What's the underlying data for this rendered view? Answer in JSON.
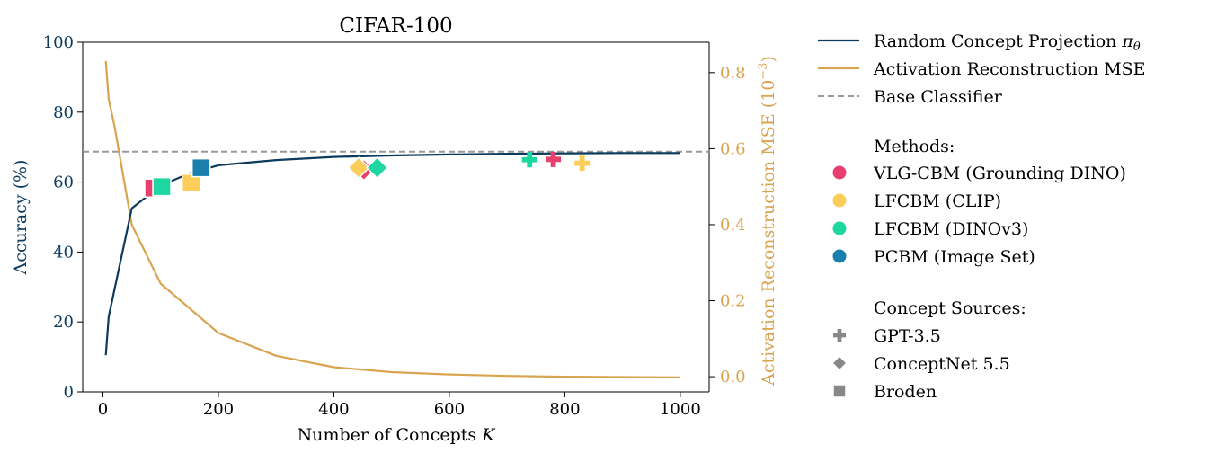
{
  "chart_data": {
    "type": "line",
    "title": "CIFAR-100",
    "xlabel": "Number of Concepts K",
    "ylabel_left": "Accuracy (%)",
    "ylabel_right": "Activation Reconstruction MSE (10−3)",
    "xlim": [
      -35,
      1050
    ],
    "ylim_left": [
      0,
      100
    ],
    "ylim_right": [
      -0.04,
      0.88
    ],
    "x_ticks": [
      0,
      200,
      400,
      600,
      800,
      1000
    ],
    "y_ticks_left": [
      0,
      20,
      40,
      60,
      80,
      100
    ],
    "y_ticks_right": [
      0.0,
      0.2,
      0.4,
      0.6,
      0.8
    ],
    "x_tick_labels": [
      "0",
      "200",
      "400",
      "600",
      "800",
      "1000"
    ],
    "y_tick_labels_left": [
      "0",
      "20",
      "40",
      "60",
      "80",
      "100"
    ],
    "y_tick_labels_right": [
      "0.0",
      "0.2",
      "0.4",
      "0.6",
      "0.8"
    ],
    "grid": false,
    "legend_placement": "outside-right",
    "colors": {
      "accuracy": "#0d3b5e",
      "mse": "#d9a44f",
      "base": "#999999",
      "vlg": "#e8406e",
      "lfclip": "#fdcd5a",
      "lfdino": "#1dd6a0",
      "pcbm": "#1a7fad",
      "source_marker": "#888888"
    },
    "series": [
      {
        "name": "Random Concept Projection πθ",
        "axis": "left",
        "x": [
          5,
          10,
          50,
          100,
          150,
          200,
          300,
          400,
          500,
          600,
          700,
          800,
          900,
          1000
        ],
        "y": [
          10.5,
          21.5,
          52.5,
          59.0,
          62.5,
          64.8,
          66.3,
          67.2,
          67.6,
          67.9,
          68.1,
          68.2,
          68.3,
          68.3
        ]
      },
      {
        "name": "Activation Reconstruction MSE",
        "axis": "right",
        "x": [
          5,
          10,
          20,
          50,
          100,
          200,
          300,
          400,
          500,
          600,
          700,
          800,
          900,
          1000
        ],
        "y": [
          0.83,
          0.73,
          0.66,
          0.4,
          0.245,
          0.115,
          0.055,
          0.025,
          0.012,
          0.006,
          0.002,
          0.0,
          -0.001,
          -0.002
        ]
      }
    ],
    "baseline": {
      "name": "Base Classifier",
      "axis": "left",
      "y": 68.7
    },
    "points": [
      {
        "method": "vlg",
        "source": "broden",
        "x": 88,
        "y": 58.3
      },
      {
        "method": "vlg",
        "source": "conceptnet",
        "x": 452,
        "y": 63.5
      },
      {
        "method": "vlg",
        "source": "gpt",
        "x": 780,
        "y": 66.5
      },
      {
        "method": "lfclip",
        "source": "broden",
        "x": 153,
        "y": 59.7
      },
      {
        "method": "lfclip",
        "source": "conceptnet",
        "x": 443,
        "y": 64.1
      },
      {
        "method": "lfclip",
        "source": "gpt",
        "x": 830,
        "y": 65.4
      },
      {
        "method": "lfdino",
        "source": "broden",
        "x": 102,
        "y": 58.7
      },
      {
        "method": "lfdino",
        "source": "conceptnet",
        "x": 475,
        "y": 64.1
      },
      {
        "method": "lfdino",
        "source": "gpt",
        "x": 739,
        "y": 66.4
      },
      {
        "method": "pcbm",
        "source": "broden",
        "x": 170,
        "y": 64.1
      }
    ]
  },
  "legend": {
    "lines": [
      {
        "key": "accuracy",
        "label": "Random Concept Projection",
        "math": "πθ"
      },
      {
        "key": "mse",
        "label": "Activation Reconstruction MSE",
        "math": ""
      },
      {
        "key": "base",
        "label": "Base Classifier",
        "math": ""
      }
    ],
    "methods_title": "Methods:",
    "methods": [
      {
        "key": "vlg",
        "label": "VLG-CBM (Grounding DINO)"
      },
      {
        "key": "lfclip",
        "label": "LFCBM (CLIP)"
      },
      {
        "key": "lfdino",
        "label": "LFCBM (DINOv3)"
      },
      {
        "key": "pcbm",
        "label": "PCBM (Image Set)"
      }
    ],
    "sources_title": "Concept Sources:",
    "sources": [
      {
        "key": "gpt",
        "label": "GPT-3.5",
        "shape": "plus"
      },
      {
        "key": "conceptnet",
        "label": "ConceptNet 5.5",
        "shape": "diamond"
      },
      {
        "key": "broden",
        "label": "Broden",
        "shape": "square"
      }
    ]
  }
}
